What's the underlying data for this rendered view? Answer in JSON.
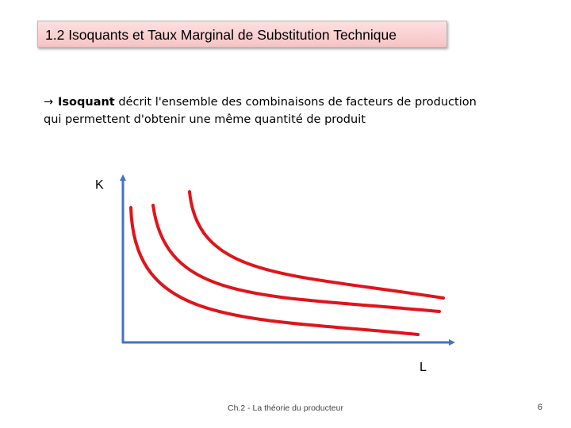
{
  "slide": {
    "title": "1.2 Isoquants et Taux Marginal de Substitution Technique",
    "description": {
      "term": "Isoquant",
      "line1_rest": " décrit l'ensemble des combinaisons de facteurs de production",
      "line2": "qui permettent d'obtenir une même quantité de produit"
    },
    "footer": "Ch.2 - La théorie du producteur",
    "page_number": "6"
  },
  "diagram": {
    "y_axis_label": "K",
    "x_axis_label": "L",
    "curve_count": 3,
    "colors": {
      "axis": "#4472c4",
      "curve": "#e0141b"
    }
  }
}
